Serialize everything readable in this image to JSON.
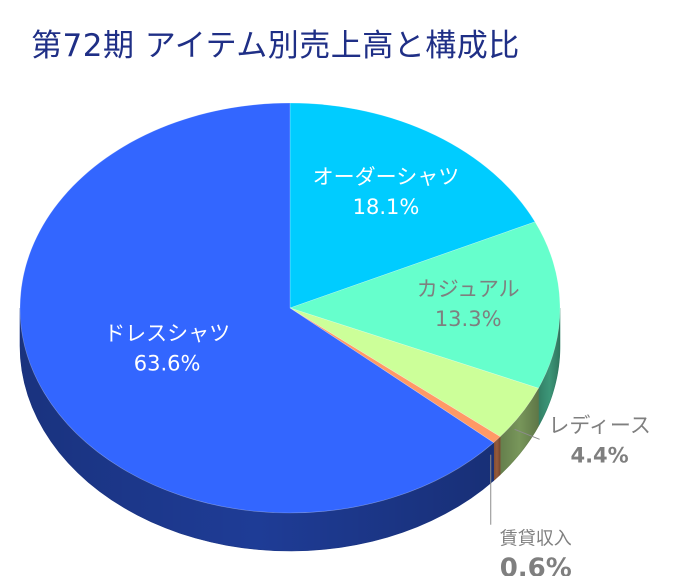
{
  "chart_data": {
    "type": "pie",
    "title": "第72期 アイテム別売上高と構成比",
    "slices": [
      {
        "label": "オーダーシャツ",
        "value": 18.1,
        "value_label": "18.1%",
        "color": "#00ccff"
      },
      {
        "label": "カジュアル",
        "value": 13.3,
        "value_label": "13.3%",
        "color": "#66ffcc"
      },
      {
        "label": "レディース",
        "value": 4.4,
        "value_label": "4.4%",
        "color": "#ccff99"
      },
      {
        "label": "賃貸収入",
        "value": 0.6,
        "value_label": "0.6%",
        "color": "#ff9966"
      },
      {
        "label": "ドレスシャツ",
        "value": 63.6,
        "value_label": "63.6%",
        "color": "#3366ff"
      }
    ]
  }
}
